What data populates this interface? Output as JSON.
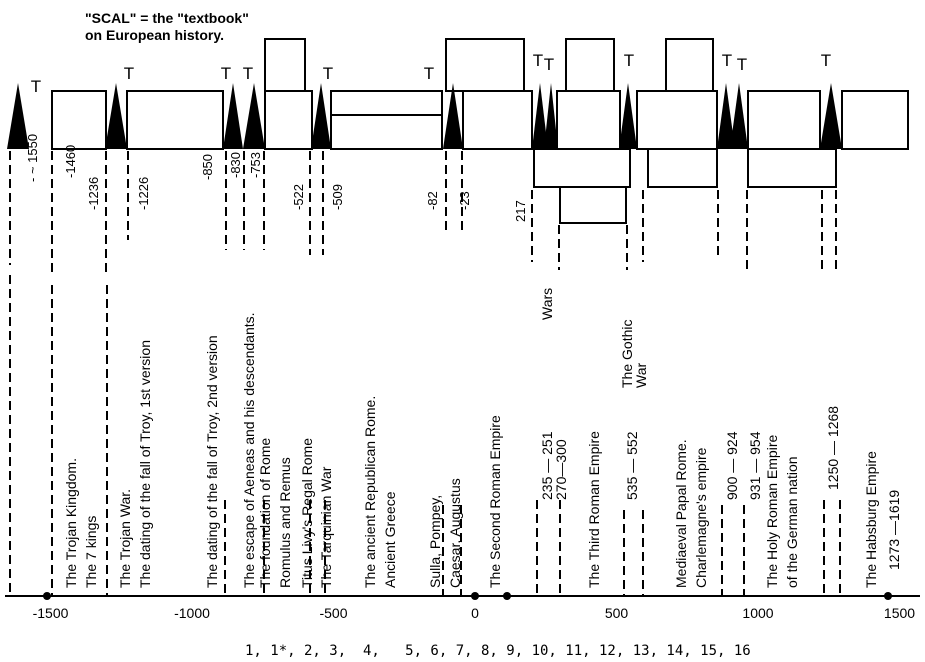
{
  "header": {
    "line1": "\"SCAL\" = the \"textbook\"",
    "line2": "on European history."
  },
  "t_marker": "T",
  "top_years": [
    "- ~ 1550",
    "-1460",
    "-1236",
    "-1226",
    "-850",
    "-830",
    "-753",
    "-522",
    "-509",
    "-82",
    "-23",
    "217"
  ],
  "events": [
    {
      "lines": [
        "The Trojan Kingdom.",
        "The 7 kings"
      ]
    },
    {
      "lines": [
        "The Trojan War.",
        "The dating of the fall of Troy, 1st version"
      ]
    },
    {
      "lines": [
        "The dating of the fall of Troy, 2nd version"
      ]
    },
    {
      "lines": [
        "The escape of Aeneas and his descendants."
      ]
    },
    {
      "lines": [
        "The foundation of Rome",
        "Romulus and Remus"
      ]
    },
    {
      "lines": [
        "Titus Livy's Regal Rome"
      ]
    },
    {
      "lines": [
        "The Tarquinian War"
      ]
    },
    {
      "lines": [
        "The ancient Republican Rome.",
        "Ancient Greece"
      ]
    },
    {
      "lines": [
        "Sulla, Pompey,",
        "Caesar, Augustus"
      ]
    },
    {
      "lines": [
        "The Second Roman Empire"
      ]
    },
    {
      "lines": [
        "Wars"
      ]
    },
    {
      "lines": [
        "235 — 251"
      ]
    },
    {
      "lines": [
        "270—300"
      ]
    },
    {
      "lines": [
        "The Third Roman Empire"
      ]
    },
    {
      "lines": [
        "The Gothic",
        "War"
      ]
    },
    {
      "lines": [
        "535 — 552"
      ]
    },
    {
      "lines": [
        "Mediaeval Papal Rome.",
        "Charlemagne's empire"
      ]
    },
    {
      "lines": [
        "900 — 924"
      ]
    },
    {
      "lines": [
        "931 — 954"
      ]
    },
    {
      "lines": [
        "The Holy Roman Empire",
        "of the German nation"
      ]
    },
    {
      "lines": [
        "1250 — 1268"
      ]
    },
    {
      "lines": [
        "The Habsburg Empire"
      ]
    },
    {
      "lines": [
        "1273 —1619"
      ]
    }
  ],
  "axis": {
    "ticks": [
      "-1500",
      "-1000",
      "-500",
      "0",
      "500",
      "1000",
      "1500"
    ],
    "min": -1650,
    "max": 1650
  },
  "sequence": "1, 1*, 2, 3,  4,   5, 6, 7, 8, 9, 10, 11, 12, 13, 14, 15, 16"
}
